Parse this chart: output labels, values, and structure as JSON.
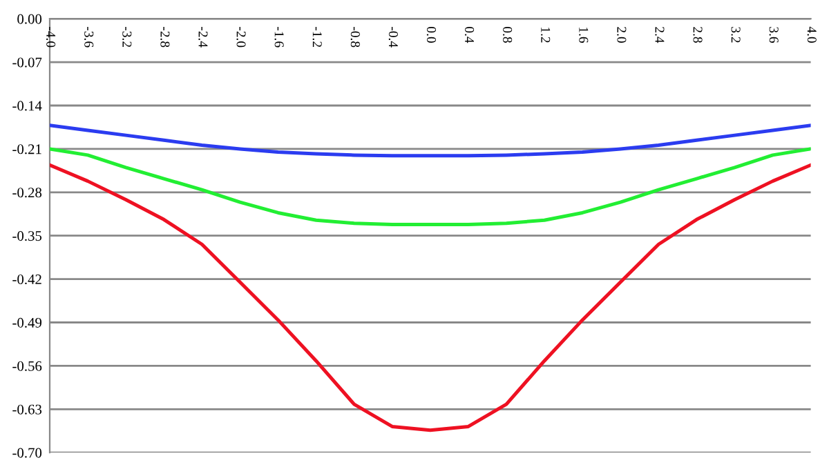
{
  "chart_data": {
    "type": "line",
    "x": [
      -4.0,
      -3.6,
      -3.2,
      -2.8,
      -2.4,
      -2.0,
      -1.6,
      -1.2,
      -0.8,
      -0.4,
      0.0,
      0.4,
      0.8,
      1.2,
      1.6,
      2.0,
      2.4,
      2.8,
      3.2,
      3.6,
      4.0
    ],
    "series": [
      {
        "color": "#2b3cf0",
        "values": [
          -0.172,
          -0.18,
          -0.188,
          -0.196,
          -0.204,
          -0.21,
          -0.215,
          -0.218,
          -0.22,
          -0.221,
          -0.221,
          -0.221,
          -0.22,
          -0.218,
          -0.215,
          -0.21,
          -0.204,
          -0.196,
          -0.188,
          -0.18,
          -0.172
        ]
      },
      {
        "color": "#22ee33",
        "values": [
          -0.21,
          -0.22,
          -0.24,
          -0.258,
          -0.276,
          -0.296,
          -0.313,
          -0.325,
          -0.33,
          -0.332,
          -0.332,
          -0.332,
          -0.33,
          -0.325,
          -0.313,
          -0.296,
          -0.276,
          -0.258,
          -0.24,
          -0.22,
          -0.21
        ]
      },
      {
        "color": "#ee1122",
        "values": [
          -0.236,
          -0.262,
          -0.292,
          -0.324,
          -0.364,
          -0.425,
          -0.486,
          -0.552,
          -0.622,
          -0.658,
          -0.664,
          -0.658,
          -0.622,
          -0.552,
          -0.486,
          -0.425,
          -0.364,
          -0.324,
          -0.292,
          -0.262,
          -0.236
        ]
      }
    ],
    "xlim": [
      -4.0,
      4.0
    ],
    "xticks": [
      {
        "value": -4.0,
        "label": "-4.0"
      },
      {
        "value": -3.6,
        "label": "-3.6"
      },
      {
        "value": -3.2,
        "label": "-3.2"
      },
      {
        "value": -2.8,
        "label": "-2.8"
      },
      {
        "value": -2.4,
        "label": "-2.4"
      },
      {
        "value": -2.0,
        "label": "-2.0"
      },
      {
        "value": -1.6,
        "label": "-1.6"
      },
      {
        "value": -1.2,
        "label": "-1.2"
      },
      {
        "value": -0.8,
        "label": "-0.8"
      },
      {
        "value": -0.4,
        "label": "-0.4"
      },
      {
        "value": 0.0,
        "label": "0.0"
      },
      {
        "value": 0.4,
        "label": "0.4"
      },
      {
        "value": 0.8,
        "label": "0.8"
      },
      {
        "value": 1.2,
        "label": "1.2"
      },
      {
        "value": 1.6,
        "label": "1.6"
      },
      {
        "value": 2.0,
        "label": "2.0"
      },
      {
        "value": 2.4,
        "label": "2.4"
      },
      {
        "value": 2.8,
        "label": "2.8"
      },
      {
        "value": 3.2,
        "label": "3.2"
      },
      {
        "value": 3.6,
        "label": "3.6"
      },
      {
        "value": 4.0,
        "label": "4.0"
      }
    ],
    "ylim": [
      -0.7,
      0.0
    ],
    "yticks": [
      {
        "value": 0.0,
        "label": "0.00"
      },
      {
        "value": -0.07,
        "label": "-0.07"
      },
      {
        "value": -0.14,
        "label": "-0.14"
      },
      {
        "value": -0.21,
        "label": "-0.21"
      },
      {
        "value": -0.28,
        "label": "-0.28"
      },
      {
        "value": -0.35,
        "label": "-0.35"
      },
      {
        "value": -0.42,
        "label": "-0.42"
      },
      {
        "value": -0.49,
        "label": "-0.49"
      },
      {
        "value": -0.56,
        "label": "-0.56"
      },
      {
        "value": -0.63,
        "label": "-0.63"
      },
      {
        "value": -0.7,
        "label": "-0.70"
      }
    ],
    "grid": "y",
    "marker": "none",
    "line_style": "solid"
  }
}
